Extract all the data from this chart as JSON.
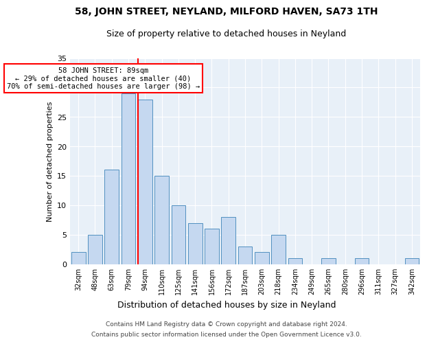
{
  "title1": "58, JOHN STREET, NEYLAND, MILFORD HAVEN, SA73 1TH",
  "title2": "Size of property relative to detached houses in Neyland",
  "xlabel": "Distribution of detached houses by size in Neyland",
  "ylabel": "Number of detached properties",
  "categories": [
    "32sqm",
    "48sqm",
    "63sqm",
    "79sqm",
    "94sqm",
    "110sqm",
    "125sqm",
    "141sqm",
    "156sqm",
    "172sqm",
    "187sqm",
    "203sqm",
    "218sqm",
    "234sqm",
    "249sqm",
    "265sqm",
    "280sqm",
    "296sqm",
    "311sqm",
    "327sqm",
    "342sqm"
  ],
  "values": [
    2,
    5,
    16,
    29,
    28,
    15,
    10,
    7,
    6,
    8,
    3,
    2,
    5,
    1,
    0,
    1,
    0,
    1,
    0,
    0,
    1
  ],
  "bar_color": "#c5d8f0",
  "bar_edge_color": "#5090c0",
  "vline_color": "red",
  "vline_position": 3.575,
  "annotation_text": "58 JOHN STREET: 89sqm\n← 29% of detached houses are smaller (40)\n70% of semi-detached houses are larger (98) →",
  "annotation_box_color": "white",
  "annotation_box_edge_color": "red",
  "ylim": [
    0,
    35
  ],
  "yticks": [
    0,
    5,
    10,
    15,
    20,
    25,
    30,
    35
  ],
  "background_color": "#e8f0f8",
  "footer1": "Contains HM Land Registry data © Crown copyright and database right 2024.",
  "footer2": "Contains public sector information licensed under the Open Government Licence v3.0."
}
